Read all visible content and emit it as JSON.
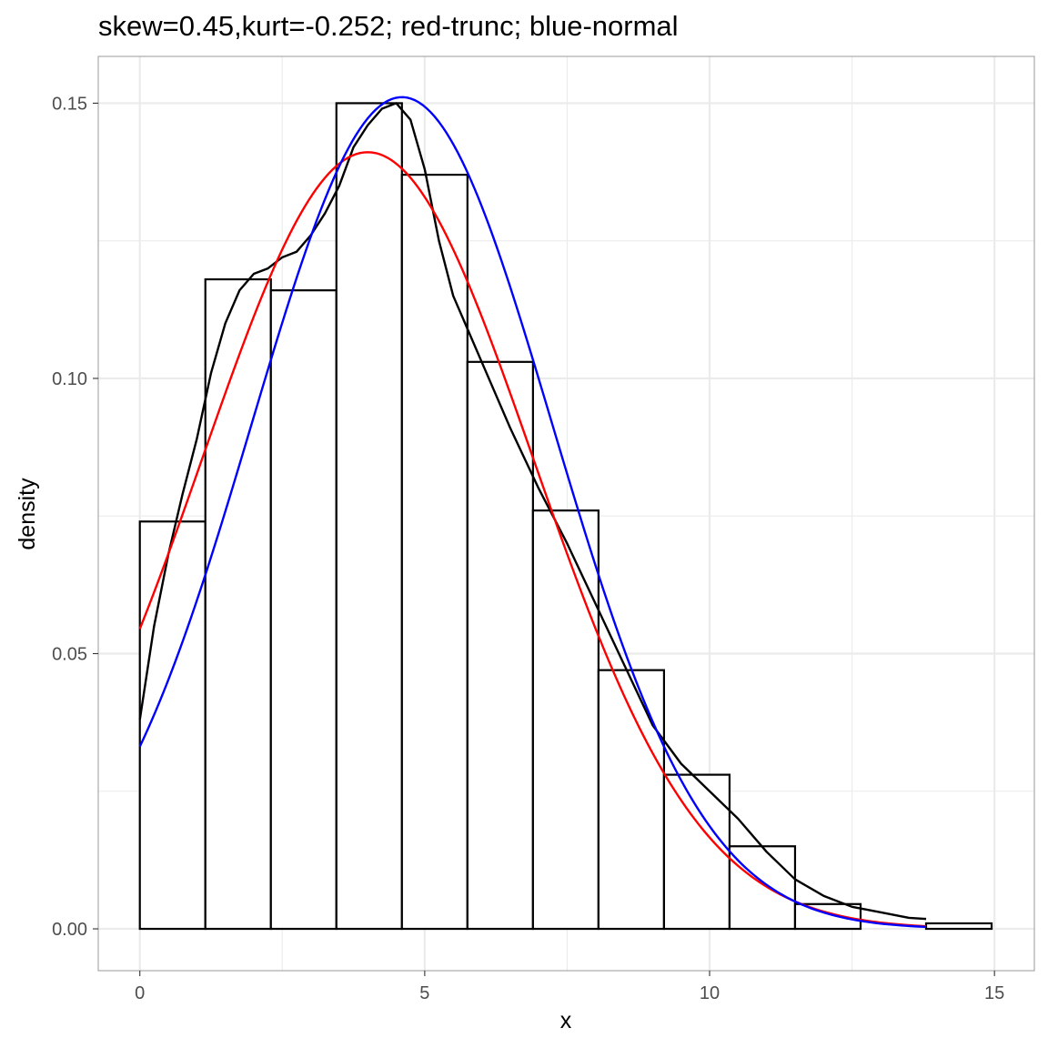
{
  "chart_data": {
    "type": "bar",
    "title": "skew=0.45,kurt=-0.252; red-trunc; blue-normal",
    "xlabel": "x",
    "ylabel": "density",
    "xlim": [
      -0.73,
      15.7
    ],
    "ylim": [
      -0.0076,
      0.1585
    ],
    "x_ticks": [
      0,
      5,
      10,
      15
    ],
    "x_tick_labels": [
      "0",
      "5",
      "10",
      "15"
    ],
    "y_ticks": [
      0,
      0.05,
      0.1,
      0.15
    ],
    "y_tick_labels": [
      "0.00",
      "0.05",
      "0.10",
      "0.15"
    ],
    "grid": true,
    "colors": {
      "panel_border": "#9a9a9a",
      "grid": "#ebebeb",
      "bars_outline": "#000000",
      "kde": "#000000",
      "truncated_normal": "#ff0000",
      "normal": "#0000ff"
    },
    "histogram": {
      "bin_edges": [
        0,
        1.15,
        2.3,
        3.45,
        4.6,
        5.75,
        6.9,
        8.05,
        9.2,
        10.35,
        11.5,
        12.65,
        13.8,
        14.95
      ],
      "values": [
        0.074,
        0.118,
        0.116,
        0.15,
        0.137,
        0.103,
        0.076,
        0.047,
        0.028,
        0.015,
        0.0045,
        0.0,
        0.001
      ]
    },
    "series": [
      {
        "kind": "kde",
        "x": [
          0,
          0.25,
          0.5,
          0.75,
          1.0,
          1.25,
          1.5,
          1.75,
          2.0,
          2.25,
          2.5,
          2.75,
          3.0,
          3.25,
          3.5,
          3.75,
          4.0,
          4.25,
          4.5,
          4.75,
          5.0,
          5.25,
          5.5,
          5.75,
          6.0,
          6.5,
          7.0,
          7.5,
          8.0,
          8.5,
          9.0,
          9.5,
          10.0,
          10.5,
          11.0,
          11.5,
          12.0,
          12.5,
          13.0,
          13.5,
          13.8
        ],
        "y": [
          0.038,
          0.055,
          0.068,
          0.079,
          0.089,
          0.101,
          0.11,
          0.116,
          0.119,
          0.12,
          0.122,
          0.123,
          0.126,
          0.13,
          0.135,
          0.142,
          0.146,
          0.149,
          0.15,
          0.147,
          0.138,
          0.125,
          0.115,
          0.109,
          0.103,
          0.091,
          0.08,
          0.07,
          0.059,
          0.048,
          0.037,
          0.03,
          0.025,
          0.02,
          0.014,
          0.009,
          0.006,
          0.004,
          0.003,
          0.002,
          0.0018
        ]
      },
      {
        "kind": "truncated-normal",
        "mean": 4.0,
        "sd": 2.9,
        "peak": 0.1411,
        "x_range": [
          0,
          13.8
        ]
      },
      {
        "kind": "normal",
        "mean": 4.6,
        "sd": 2.64,
        "peak": 0.1511,
        "x_range": [
          0,
          13.8
        ]
      }
    ]
  }
}
